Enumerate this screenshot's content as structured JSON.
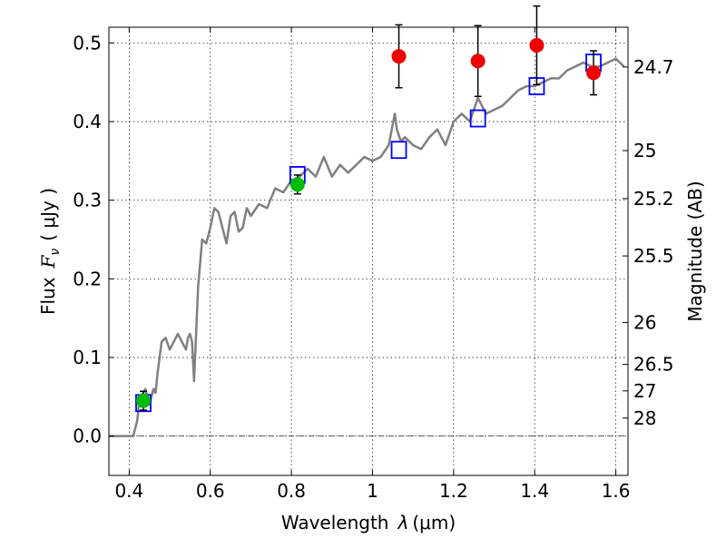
{
  "chart_data": {
    "type": "scatter",
    "xlabel_prefix": "Wavelength",
    "xlabel_unit": "(μm)",
    "ylabel_prefix": "Flux",
    "ylabel_unit": "( μJy )",
    "ylabel_right": "Magnitude (AB)",
    "xlim": [
      0.35,
      1.63
    ],
    "ylim": [
      -0.05,
      0.52
    ],
    "grid": true,
    "x_ticks": [
      0.4,
      0.6,
      0.8,
      1.0,
      1.2,
      1.4,
      1.6
    ],
    "x_tick_labels": [
      "0.4",
      "0.6",
      "0.8",
      "1",
      "1.2",
      "1.4",
      "1.6"
    ],
    "y_ticks": [
      0.0,
      0.1,
      0.2,
      0.3,
      0.4,
      0.5
    ],
    "y_tick_labels": [
      "0.0",
      "0.1",
      "0.2",
      "0.3",
      "0.4",
      "0.5"
    ],
    "right_ticks": [
      {
        "flux": 0.4694,
        "label": "24.7"
      },
      {
        "flux": 0.3631,
        "label": "25"
      },
      {
        "flux": 0.302,
        "label": "25.2"
      },
      {
        "flux": 0.2291,
        "label": "25.5"
      },
      {
        "flux": 0.1445,
        "label": "26"
      },
      {
        "flux": 0.0912,
        "label": "26.5"
      },
      {
        "flux": 0.0575,
        "label": "27"
      },
      {
        "flux": 0.0229,
        "label": "28"
      }
    ],
    "series": [
      {
        "type": "line",
        "color": "#808080",
        "x": [
          0.35,
          0.4,
          0.41,
          0.42,
          0.425,
          0.43,
          0.44,
          0.45,
          0.46,
          0.465,
          0.47,
          0.48,
          0.49,
          0.5,
          0.51,
          0.52,
          0.53,
          0.54,
          0.545,
          0.55,
          0.555,
          0.56,
          0.565,
          0.57,
          0.58,
          0.59,
          0.6,
          0.61,
          0.62,
          0.63,
          0.64,
          0.65,
          0.66,
          0.67,
          0.68,
          0.69,
          0.7,
          0.72,
          0.74,
          0.76,
          0.78,
          0.8,
          0.82,
          0.84,
          0.86,
          0.88,
          0.9,
          0.92,
          0.94,
          0.96,
          0.98,
          1.0,
          1.02,
          1.04,
          1.055,
          1.06,
          1.07,
          1.08,
          1.1,
          1.12,
          1.14,
          1.16,
          1.18,
          1.2,
          1.22,
          1.24,
          1.26,
          1.27,
          1.28,
          1.3,
          1.32,
          1.34,
          1.36,
          1.38,
          1.4,
          1.42,
          1.44,
          1.46,
          1.48,
          1.5,
          1.52,
          1.54,
          1.56,
          1.58,
          1.6,
          1.62
        ],
        "y": [
          0.0,
          0.0,
          0.0,
          0.02,
          0.045,
          0.05,
          0.06,
          0.04,
          0.06,
          0.055,
          0.08,
          0.12,
          0.125,
          0.11,
          0.12,
          0.13,
          0.12,
          0.11,
          0.125,
          0.13,
          0.12,
          0.07,
          0.13,
          0.19,
          0.25,
          0.245,
          0.265,
          0.29,
          0.285,
          0.265,
          0.245,
          0.28,
          0.285,
          0.26,
          0.265,
          0.29,
          0.28,
          0.295,
          0.29,
          0.315,
          0.31,
          0.325,
          0.33,
          0.34,
          0.33,
          0.355,
          0.33,
          0.345,
          0.335,
          0.345,
          0.355,
          0.35,
          0.355,
          0.37,
          0.41,
          0.39,
          0.375,
          0.38,
          0.37,
          0.365,
          0.38,
          0.39,
          0.37,
          0.4,
          0.41,
          0.4,
          0.43,
          0.42,
          0.41,
          0.415,
          0.42,
          0.43,
          0.44,
          0.445,
          0.445,
          0.45,
          0.455,
          0.455,
          0.465,
          0.47,
          0.475,
          0.47,
          0.47,
          0.475,
          0.48,
          0.47
        ]
      },
      {
        "type": "markers",
        "marker": "open-square",
        "color": "#0000ff",
        "x": [
          0.435,
          0.815,
          1.065,
          1.26,
          1.405,
          1.545
        ],
        "y": [
          0.042,
          0.332,
          0.364,
          0.404,
          0.445,
          0.475
        ]
      },
      {
        "type": "errorbar",
        "marker": "filled-circle",
        "color": "#00bb00",
        "x": [
          0.435,
          0.815
        ],
        "y": [
          0.045,
          0.32
        ],
        "err": [
          0.012,
          0.012
        ]
      },
      {
        "type": "errorbar",
        "marker": "filled-circle",
        "color": "#ee0000",
        "x": [
          1.065,
          1.26,
          1.405,
          1.545
        ],
        "y": [
          0.483,
          0.477,
          0.497,
          0.462
        ],
        "err": [
          0.04,
          0.045,
          0.05,
          0.028
        ]
      }
    ]
  }
}
